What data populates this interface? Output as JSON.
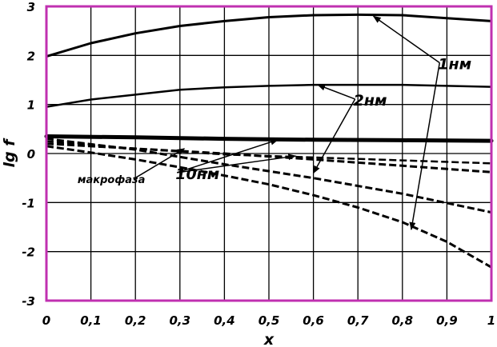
{
  "chart_data": {
    "type": "line",
    "xlabel": "x",
    "ylabel": "lg f",
    "xlim": [
      0,
      1
    ],
    "ylim": [
      -3,
      3
    ],
    "grid": true,
    "frame_color": "#c030b0",
    "xticks": [
      "0",
      "0,1",
      "0,2",
      "0,3",
      "0,4",
      "0,5",
      "0,6",
      "0,7",
      "0,8",
      "0,9",
      "1"
    ],
    "yticks": [
      "3",
      "2",
      "1",
      "0",
      "-1",
      "-2",
      "-3"
    ],
    "series": [
      {
        "style": "solid",
        "width": 3,
        "x": [
          0,
          0.1,
          0.2,
          0.3,
          0.4,
          0.5,
          0.6,
          0.7,
          0.8,
          0.9,
          1
        ],
        "y": [
          1.98,
          2.25,
          2.45,
          2.6,
          2.7,
          2.78,
          2.82,
          2.83,
          2.82,
          2.76,
          2.7
        ]
      },
      {
        "style": "solid",
        "width": 2.5,
        "x": [
          0,
          0.1,
          0.2,
          0.3,
          0.4,
          0.5,
          0.6,
          0.7,
          0.8,
          0.9,
          1
        ],
        "y": [
          0.95,
          1.1,
          1.2,
          1.3,
          1.35,
          1.38,
          1.4,
          1.4,
          1.4,
          1.38,
          1.36
        ]
      },
      {
        "style": "solid",
        "width": 5,
        "x": [
          0,
          0.2,
          0.4,
          0.6,
          0.8,
          1
        ],
        "y": [
          0.35,
          0.33,
          0.3,
          0.28,
          0.27,
          0.26
        ]
      },
      {
        "style": "dashed",
        "width": 3,
        "x": [
          0,
          0.2,
          0.4,
          0.6,
          0.8,
          1
        ],
        "y": [
          0.2,
          0.1,
          0.0,
          -0.12,
          -0.25,
          -0.38
        ]
      },
      {
        "style": "dashed",
        "width": 3,
        "x": [
          0,
          0.1,
          0.2,
          0.3,
          0.4,
          0.5,
          0.6,
          0.7,
          0.8,
          0.9,
          1
        ],
        "y": [
          0.15,
          0.02,
          -0.12,
          -0.28,
          -0.45,
          -0.63,
          -0.85,
          -1.1,
          -1.4,
          -1.8,
          -2.32
        ]
      },
      {
        "style": "dashed",
        "width": 2.5,
        "x": [
          0,
          0.2,
          0.4,
          0.6,
          0.8,
          1
        ],
        "y": [
          0.25,
          0.1,
          -0.02,
          -0.08,
          -0.14,
          -0.2
        ]
      },
      {
        "style": "dashed",
        "width": 3,
        "x": [
          0,
          0.2,
          0.4,
          0.6,
          0.8,
          1
        ],
        "y": [
          0.3,
          0.08,
          -0.22,
          -0.5,
          -0.82,
          -1.2
        ]
      }
    ],
    "annotations": [
      {
        "text": "1нм",
        "x": 0.88,
        "y": 1.72,
        "size": "large",
        "arrows": [
          [
            0.735,
            2.8
          ],
          [
            0.82,
            -1.55
          ]
        ]
      },
      {
        "text": "2нм",
        "x": 0.69,
        "y": 0.98,
        "size": "large",
        "arrows": [
          [
            0.61,
            1.4
          ],
          [
            0.6,
            -0.4
          ]
        ]
      },
      {
        "text": "10нм",
        "x": 0.29,
        "y": -0.52,
        "size": "large",
        "arrows": [
          [
            0.52,
            0.28
          ],
          [
            0.56,
            -0.05
          ]
        ]
      },
      {
        "text": "макрофаза",
        "x": 0.07,
        "y": -0.6,
        "size": "small",
        "arrows": [
          [
            0.31,
            0.1
          ]
        ]
      }
    ]
  }
}
